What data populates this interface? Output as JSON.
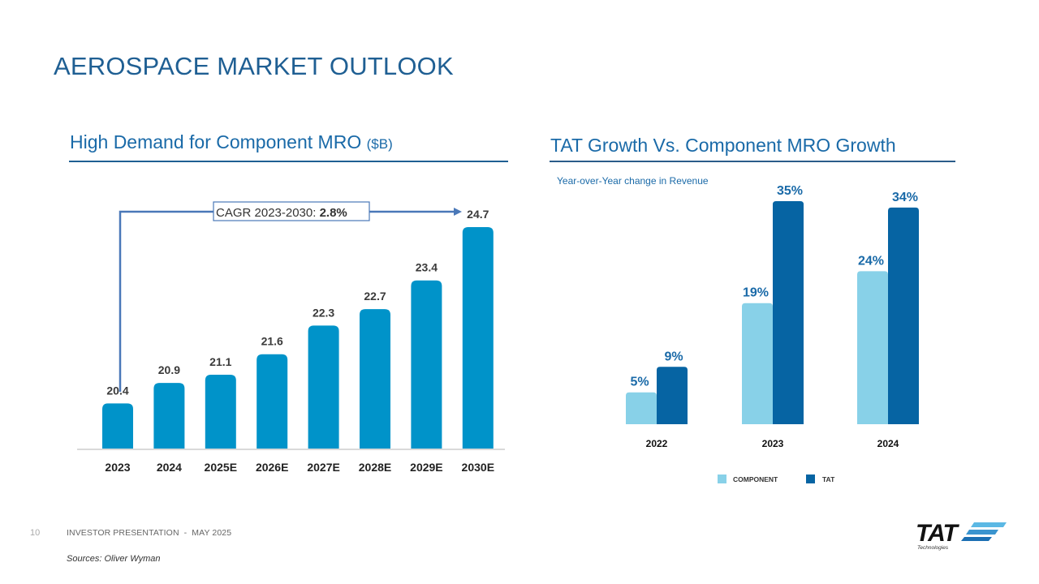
{
  "page": {
    "title": "AEROSPACE MARKET OUTLOOK"
  },
  "left_section": {
    "title": "High Demand for Component MRO",
    "unit": "($B)"
  },
  "right_section": {
    "title": "TAT Growth Vs. Component MRO Growth",
    "subtitle": "Year-over-Year change in Revenue"
  },
  "footer": {
    "page_number": "10",
    "presentation": "INVESTOR PRESENTATION  -  MAY 2025",
    "sources": "Sources: Oliver Wyman"
  },
  "logo": {
    "name": "TAT",
    "tagline": "Technologies"
  },
  "colors": {
    "title_blue": "#1f5f93",
    "section_blue": "#1a6aa8",
    "mro_bar": "#0093c9",
    "component": "#88d1e8",
    "tat": "#0664a3",
    "cagr_arrow": "#4a78b8",
    "logo_light": "#5bb8e4",
    "logo_dark": "#1b6fb3"
  },
  "chart_data": [
    {
      "type": "bar",
      "title": "High Demand for Component MRO ($B)",
      "xlabel": "",
      "ylabel": "",
      "categories": [
        "2023",
        "2024",
        "2025E",
        "2026E",
        "2027E",
        "2028E",
        "2029E",
        "2030E"
      ],
      "values": [
        20.4,
        20.9,
        21.1,
        21.6,
        22.3,
        22.7,
        23.4,
        24.7
      ],
      "labels": [
        "20.4",
        "20.9",
        "21.1",
        "21.6",
        "22.3",
        "22.7",
        "23.4",
        "24.7"
      ],
      "grid": false,
      "annotation": {
        "prefix": "CAGR 2023-2030: ",
        "value": "2.8%",
        "from": "2023",
        "to": "2030E"
      }
    },
    {
      "type": "bar",
      "title": "TAT Growth Vs. Component MRO Growth",
      "subtitle": "Year-over-Year change in Revenue",
      "xlabel": "",
      "ylabel": "",
      "categories": [
        "2022",
        "2023",
        "2024"
      ],
      "series": [
        {
          "name": "COMPONENT",
          "values": [
            5,
            19,
            24
          ],
          "labels": [
            "5%",
            "19%",
            "24%"
          ]
        },
        {
          "name": "TAT",
          "values": [
            9,
            35,
            34
          ],
          "labels": [
            "9%",
            "35%",
            "34%"
          ]
        }
      ],
      "ylim": [
        0,
        35
      ],
      "grid": false,
      "legend": "bottom"
    }
  ]
}
